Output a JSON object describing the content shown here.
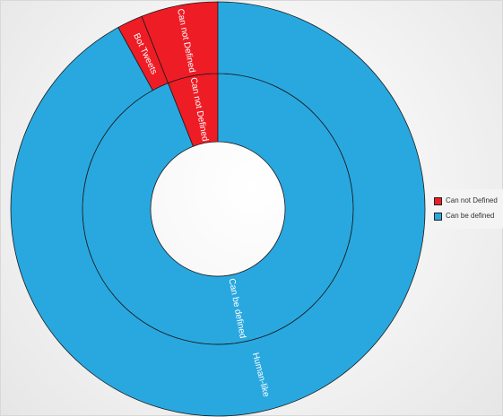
{
  "chart_data": {
    "type": "donut",
    "rings": [
      {
        "ring": "inner",
        "slices": [
          {
            "label": "Can not Defined",
            "value": 6,
            "color": "#ee1c25"
          },
          {
            "label": "Can be defined",
            "value": 94,
            "color": "#29a8e0"
          }
        ]
      },
      {
        "ring": "outer",
        "slices": [
          {
            "label": "Can not Defined",
            "value": 6,
            "color": "#ee1c25"
          },
          {
            "label": "Bot Tweets",
            "value": 2,
            "color": "#ee1c25"
          },
          {
            "label": "Human-like",
            "value": 92,
            "color": "#29a8e0"
          }
        ]
      }
    ],
    "legend": {
      "position": "right",
      "entries": [
        {
          "label": "Can not Defined",
          "color": "#ee1c25"
        },
        {
          "label": "Can be defined",
          "color": "#29a8e0"
        }
      ]
    }
  }
}
